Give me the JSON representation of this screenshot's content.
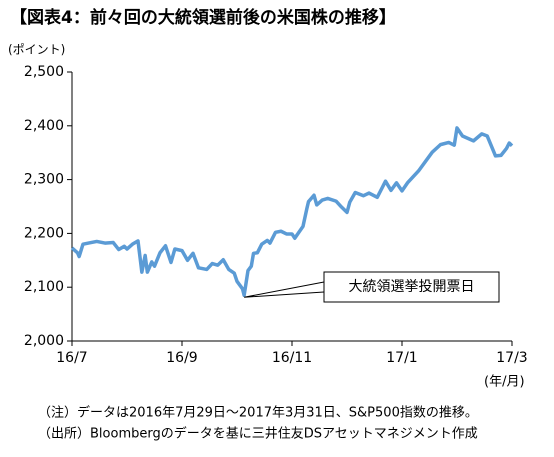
{
  "chart_data": {
    "type": "line",
    "title": "【図表4：前々回の大統領選前後の米国株の推移】",
    "y_axis_label": "(ポイント)",
    "x_axis_label": "(年/月)",
    "annotation": "大統領選挙投開票日",
    "notes": [
      "（注）データは2016年7月29日～2017年3月31日、S&P500指数の推移。",
      "（出所）Bloombergのデータを基に三井住友DSアセットマネジメント作成"
    ],
    "xlim": [
      0,
      8
    ],
    "xticks": [
      {
        "value": 0,
        "label": "16/7"
      },
      {
        "value": 2,
        "label": "16/9"
      },
      {
        "value": 4,
        "label": "16/11"
      },
      {
        "value": 6,
        "label": "17/1"
      },
      {
        "value": 8,
        "label": "17/3"
      }
    ],
    "ylim": [
      2000,
      2500
    ],
    "yticks": [
      {
        "value": 2000,
        "label": "2,000"
      },
      {
        "value": 2100,
        "label": "2,100"
      },
      {
        "value": 2200,
        "label": "2,200"
      },
      {
        "value": 2300,
        "label": "2,300"
      },
      {
        "value": 2400,
        "label": "2,400"
      },
      {
        "value": 2500,
        "label": "2,500"
      }
    ],
    "grid": false,
    "series": [
      {
        "color": "#5b9bd5",
        "x": [
          0,
          0.1,
          0.13,
          0.2,
          0.3,
          0.45,
          0.6,
          0.75,
          0.85,
          0.95,
          1.0,
          1.1,
          1.2,
          1.27,
          1.33,
          1.37,
          1.45,
          1.5,
          1.6,
          1.7,
          1.8,
          1.87,
          2.0,
          2.1,
          2.2,
          2.3,
          2.45,
          2.55,
          2.65,
          2.75,
          2.85,
          2.95,
          3.0,
          3.1,
          3.13,
          3.2,
          3.26,
          3.3,
          3.37,
          3.45,
          3.55,
          3.6,
          3.7,
          3.8,
          3.9,
          4.0,
          4.05,
          4.2,
          4.27,
          4.3,
          4.4,
          4.45,
          4.55,
          4.65,
          4.8,
          4.9,
          5.0,
          5.05,
          5.15,
          5.3,
          5.4,
          5.55,
          5.7,
          5.8,
          5.9,
          6.0,
          6.1,
          6.3,
          6.45,
          6.55,
          6.7,
          6.85,
          6.95,
          7.0,
          7.1,
          7.3,
          7.45,
          7.55,
          7.7,
          7.8,
          7.9,
          7.95,
          8.0
        ],
        "values": [
          2173,
          2164,
          2157,
          2180,
          2182,
          2185,
          2182,
          2183,
          2170,
          2176,
          2171,
          2180,
          2186,
          2128,
          2159,
          2128,
          2147,
          2139,
          2164,
          2177,
          2146,
          2171,
          2168,
          2150,
          2163,
          2136,
          2133,
          2144,
          2141,
          2151,
          2133,
          2126,
          2111,
          2097,
          2085,
          2131,
          2139,
          2163,
          2164,
          2180,
          2187,
          2182,
          2202,
          2204,
          2199,
          2199,
          2191,
          2213,
          2246,
          2259,
          2271,
          2253,
          2262,
          2265,
          2260,
          2249,
          2239,
          2258,
          2276,
          2270,
          2275,
          2267,
          2297,
          2280,
          2294,
          2279,
          2294,
          2316,
          2337,
          2351,
          2365,
          2369,
          2364,
          2396,
          2381,
          2372,
          2385,
          2381,
          2344,
          2345,
          2358,
          2368,
          2363
        ]
      }
    ]
  }
}
